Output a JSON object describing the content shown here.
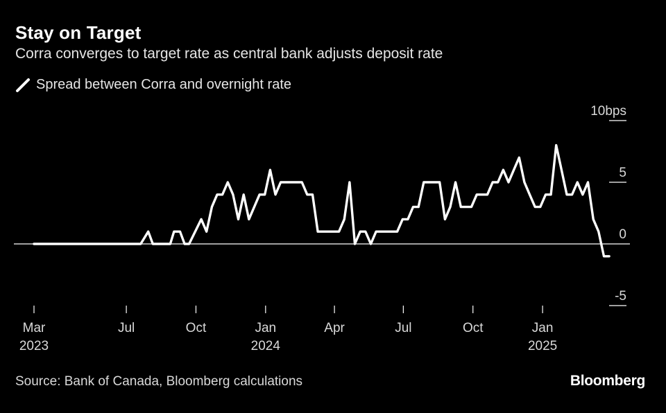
{
  "title": "Stay on Target",
  "subtitle": "Corra converges to target rate as central bank adjusts deposit rate",
  "legend_label": "Spread between Corra and overnight rate",
  "source": "Source: Bank of Canada, Bloomberg calculations",
  "brand": "Bloomberg",
  "colors": {
    "background": "#000000",
    "line": "#ffffff",
    "axis": "#ffffff",
    "text": "#d9d9d9"
  },
  "chart_data": {
    "type": "line",
    "title": "Stay on Target",
    "subtitle": "Corra converges to target rate as central bank adjusts deposit rate",
    "ylabel": "",
    "xlabel": "",
    "ylim": [
      -5,
      10
    ],
    "xlim": [
      "2023-03-01",
      "2025-03-01"
    ],
    "y_ticks": [
      {
        "value": 10,
        "label": "10bps"
      },
      {
        "value": 5,
        "label": "5"
      },
      {
        "value": 0,
        "label": "0"
      },
      {
        "value": -5,
        "label": "-5"
      }
    ],
    "x_ticks": [
      {
        "date": "2023-03-01",
        "label": "Mar",
        "year": "2023"
      },
      {
        "date": "2023-07-01",
        "label": "Jul",
        "year": ""
      },
      {
        "date": "2023-10-01",
        "label": "Oct",
        "year": ""
      },
      {
        "date": "2024-01-01",
        "label": "Jan",
        "year": "2024"
      },
      {
        "date": "2024-04-01",
        "label": "Apr",
        "year": ""
      },
      {
        "date": "2024-07-01",
        "label": "Jul",
        "year": ""
      },
      {
        "date": "2024-10-01",
        "label": "Oct",
        "year": ""
      },
      {
        "date": "2025-01-01",
        "label": "Jan",
        "year": "2025"
      }
    ],
    "grid": false,
    "legend_position": "top-left",
    "series": [
      {
        "name": "Spread between Corra and overnight rate",
        "points": [
          [
            "2023-03-01",
            0
          ],
          [
            "2023-04-01",
            0
          ],
          [
            "2023-05-01",
            0
          ],
          [
            "2023-06-01",
            0
          ],
          [
            "2023-07-01",
            0
          ],
          [
            "2023-07-20",
            0
          ],
          [
            "2023-07-30",
            1
          ],
          [
            "2023-08-05",
            0
          ],
          [
            "2023-08-20",
            0
          ],
          [
            "2023-08-28",
            0
          ],
          [
            "2023-09-02",
            1
          ],
          [
            "2023-09-10",
            1
          ],
          [
            "2023-09-16",
            0
          ],
          [
            "2023-09-22",
            0
          ],
          [
            "2023-10-08",
            2
          ],
          [
            "2023-10-15",
            1
          ],
          [
            "2023-10-22",
            3
          ],
          [
            "2023-10-29",
            4
          ],
          [
            "2023-11-05",
            4
          ],
          [
            "2023-11-12",
            5
          ],
          [
            "2023-11-19",
            4
          ],
          [
            "2023-11-26",
            2
          ],
          [
            "2023-12-03",
            4
          ],
          [
            "2023-12-10",
            2
          ],
          [
            "2023-12-17",
            3
          ],
          [
            "2023-12-24",
            4
          ],
          [
            "2023-12-31",
            4
          ],
          [
            "2024-01-07",
            6
          ],
          [
            "2024-01-14",
            4
          ],
          [
            "2024-01-21",
            5
          ],
          [
            "2024-01-28",
            5
          ],
          [
            "2024-02-04",
            5
          ],
          [
            "2024-02-11",
            5
          ],
          [
            "2024-02-18",
            5
          ],
          [
            "2024-02-25",
            4
          ],
          [
            "2024-03-03",
            4
          ],
          [
            "2024-03-10",
            1
          ],
          [
            "2024-03-17",
            1
          ],
          [
            "2024-03-24",
            1
          ],
          [
            "2024-03-31",
            1
          ],
          [
            "2024-04-07",
            1
          ],
          [
            "2024-04-14",
            2
          ],
          [
            "2024-04-21",
            5
          ],
          [
            "2024-04-28",
            0
          ],
          [
            "2024-05-05",
            1
          ],
          [
            "2024-05-12",
            1
          ],
          [
            "2024-05-19",
            0
          ],
          [
            "2024-05-26",
            1
          ],
          [
            "2024-06-02",
            1
          ],
          [
            "2024-06-09",
            1
          ],
          [
            "2024-06-16",
            1
          ],
          [
            "2024-06-23",
            1
          ],
          [
            "2024-06-30",
            2
          ],
          [
            "2024-07-07",
            2
          ],
          [
            "2024-07-14",
            3
          ],
          [
            "2024-07-21",
            3
          ],
          [
            "2024-07-28",
            5
          ],
          [
            "2024-08-04",
            5
          ],
          [
            "2024-08-11",
            5
          ],
          [
            "2024-08-18",
            5
          ],
          [
            "2024-08-25",
            2
          ],
          [
            "2024-09-01",
            3
          ],
          [
            "2024-09-08",
            5
          ],
          [
            "2024-09-15",
            3
          ],
          [
            "2024-09-22",
            3
          ],
          [
            "2024-09-29",
            3
          ],
          [
            "2024-10-06",
            4
          ],
          [
            "2024-10-13",
            4
          ],
          [
            "2024-10-20",
            4
          ],
          [
            "2024-10-27",
            5
          ],
          [
            "2024-11-03",
            5
          ],
          [
            "2024-11-10",
            6
          ],
          [
            "2024-11-17",
            5
          ],
          [
            "2024-11-24",
            6
          ],
          [
            "2024-12-01",
            7
          ],
          [
            "2024-12-08",
            5
          ],
          [
            "2024-12-15",
            4
          ],
          [
            "2024-12-22",
            3
          ],
          [
            "2024-12-29",
            3
          ],
          [
            "2025-01-05",
            4
          ],
          [
            "2025-01-12",
            4
          ],
          [
            "2025-01-19",
            8
          ],
          [
            "2025-01-26",
            6
          ],
          [
            "2025-02-02",
            4
          ],
          [
            "2025-02-09",
            4
          ],
          [
            "2025-02-16",
            5
          ],
          [
            "2025-02-23",
            4
          ],
          [
            "2025-03-02",
            5
          ],
          [
            "2025-03-09",
            2
          ],
          [
            "2025-03-16",
            1
          ],
          [
            "2025-03-23",
            -1
          ],
          [
            "2025-03-30",
            -1
          ]
        ]
      }
    ]
  }
}
